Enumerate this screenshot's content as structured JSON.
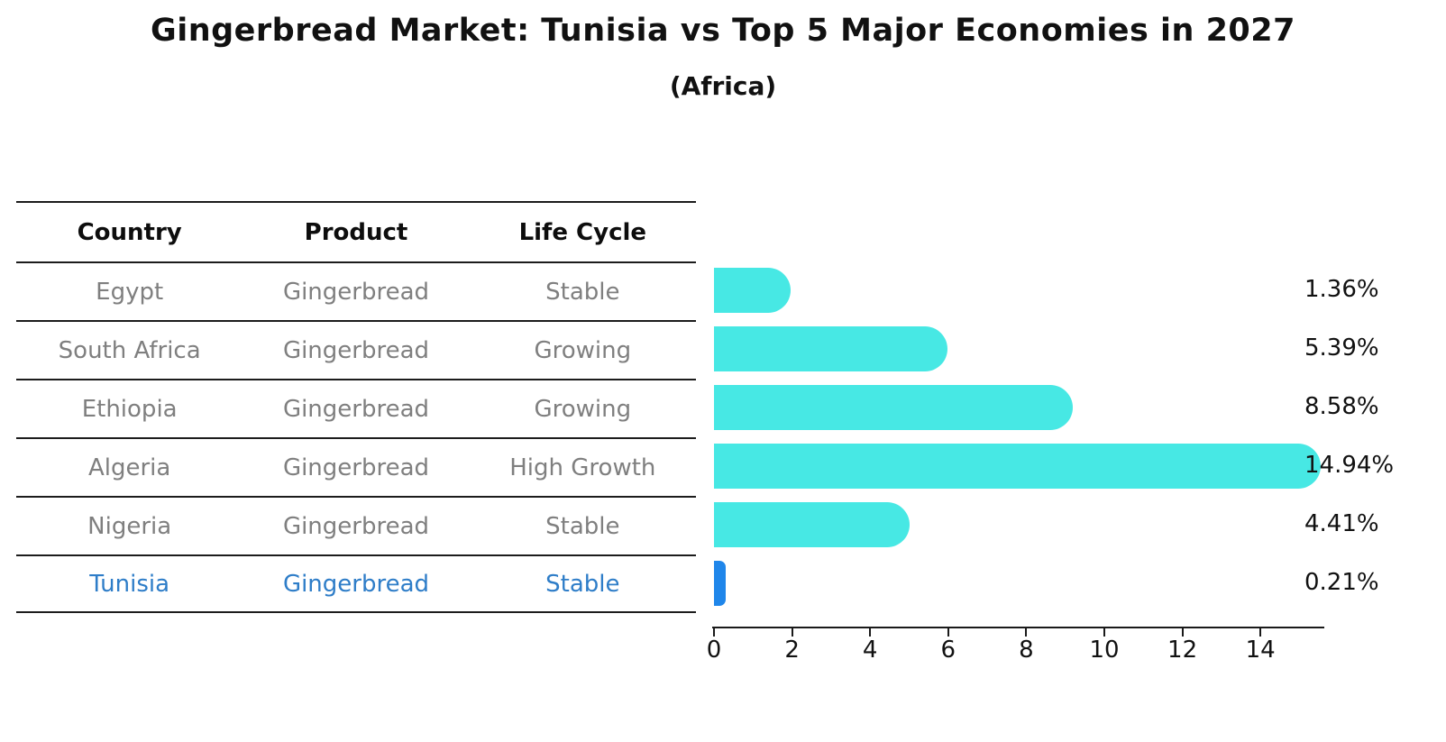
{
  "title": "Gingerbread Market: Tunisia vs Top 5 Major Economies in 2027",
  "subtitle": "(Africa)",
  "table": {
    "headers": [
      "Country",
      "Product",
      "Life Cycle"
    ],
    "rows": [
      {
        "country": "Egypt",
        "product": "Gingerbread",
        "life_cycle": "Stable",
        "highlight": false
      },
      {
        "country": "South Africa",
        "product": "Gingerbread",
        "life_cycle": "Growing",
        "highlight": false
      },
      {
        "country": "Ethiopia",
        "product": "Gingerbread",
        "life_cycle": "Growing",
        "highlight": false
      },
      {
        "country": "Algeria",
        "product": "Gingerbread",
        "life_cycle": "High Growth",
        "highlight": false
      },
      {
        "country": "Nigeria",
        "product": "Gingerbread",
        "life_cycle": "Stable",
        "highlight": false
      },
      {
        "country": "Tunisia",
        "product": "Gingerbread",
        "life_cycle": "Stable",
        "highlight": true
      }
    ]
  },
  "chart_data": {
    "type": "bar",
    "orientation": "horizontal",
    "title": "Gingerbread Market: Tunisia vs Top 5 Major Economies in 2027",
    "subtitle": "(Africa)",
    "categories": [
      "Egypt",
      "South Africa",
      "Ethiopia",
      "Algeria",
      "Nigeria",
      "Tunisia"
    ],
    "values": [
      1.36,
      5.39,
      8.58,
      14.94,
      4.41,
      0.21
    ],
    "value_labels": [
      "1.36%",
      "5.39%",
      "8.58%",
      "14.94%",
      "4.41%",
      "0.21%"
    ],
    "x_ticks": [
      0,
      2,
      4,
      6,
      8,
      10,
      12,
      14
    ],
    "xlim": [
      0,
      15.6
    ],
    "xlabel": "",
    "ylabel": "",
    "grid": false,
    "legend": false,
    "bar_color": "#47e8e4",
    "highlight_bar_color": "#1f86ea",
    "highlight_index": 5
  },
  "colors": {
    "title_text": "#111111",
    "table_text": "#7f7f7f",
    "highlight_text": "#2e7dc8",
    "axis": "#1a1a1a",
    "background": "#ffffff"
  }
}
